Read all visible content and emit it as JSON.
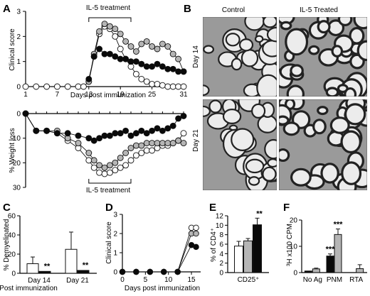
{
  "panels": {
    "A": "A",
    "B": "B",
    "C": "C",
    "D": "D",
    "E": "E",
    "F": "F"
  },
  "colors": {
    "white_fill": "#ffffff",
    "gray_fill": "#b5b5b5",
    "black_fill": "#0a0a0a",
    "axis": "#000000",
    "micrograph_bg": "#9a9a9a"
  },
  "chart_data": [
    {
      "id": "A_top",
      "type": "line",
      "ylabel": "Clinical score",
      "xlabel": "Days post immunization",
      "ylim": [
        0,
        3
      ],
      "yticks": [
        0,
        1,
        2,
        3
      ],
      "xlim": [
        1,
        31
      ],
      "xticks": [
        1,
        7,
        13,
        19,
        25,
        31
      ],
      "annotation": "IL-5 treatment",
      "annotation_range": [
        13,
        21
      ],
      "series": [
        {
          "style": "white",
          "x": [
            1,
            3,
            5,
            7,
            9,
            11,
            12,
            13,
            14,
            15,
            16,
            17,
            18,
            19,
            20,
            21,
            22,
            23,
            24,
            25,
            26,
            27,
            28,
            29,
            30,
            31
          ],
          "y": [
            0,
            0,
            0,
            0,
            0,
            0,
            0,
            0.2,
            1.2,
            2.1,
            2.4,
            2.3,
            2.0,
            1.5,
            1.1,
            0.8,
            0.5,
            0.3,
            0.2,
            0.1,
            0.1,
            0.05,
            0,
            0,
            0,
            0
          ]
        },
        {
          "style": "gray",
          "x": [
            13,
            14,
            15,
            16,
            17,
            18,
            19,
            20,
            21,
            22,
            23,
            24,
            25,
            26,
            27,
            28,
            29,
            30,
            31
          ],
          "y": [
            0.2,
            1.3,
            2.2,
            2.5,
            2.4,
            2.3,
            2.1,
            1.8,
            1.6,
            1.4,
            1.7,
            1.8,
            1.6,
            1.5,
            1.7,
            1.6,
            1.3,
            1.1,
            0.6
          ]
        },
        {
          "style": "black",
          "x": [
            13,
            14,
            15,
            16,
            17,
            18,
            19,
            20,
            21,
            22,
            23,
            24,
            25,
            26,
            27,
            28,
            29,
            30,
            31
          ],
          "y": [
            0.3,
            1.2,
            1.5,
            1.3,
            1.3,
            1.2,
            1.1,
            1.1,
            1.0,
            1.0,
            0.9,
            0.8,
            0.8,
            0.9,
            0.8,
            0.7,
            0.7,
            0.6,
            0.6
          ]
        }
      ]
    },
    {
      "id": "A_bottom",
      "type": "line",
      "ylabel": "% Weight loss",
      "ylim": [
        0,
        30
      ],
      "yticks": [
        0,
        10,
        20,
        30
      ],
      "y_inverted": true,
      "annotation": "IL-5 treatment",
      "annotation_range": [
        13,
        21
      ],
      "series": [
        {
          "style": "white",
          "x": [
            1,
            3,
            5,
            7,
            9,
            11,
            13,
            14,
            15,
            16,
            17,
            18,
            19,
            20,
            21,
            22,
            23,
            24,
            25,
            26,
            27,
            28,
            29,
            30,
            31
          ],
          "y": [
            0,
            7,
            7,
            8,
            11,
            14,
            19,
            22,
            24,
            24.5,
            24,
            23,
            22,
            21,
            19,
            17,
            16,
            15,
            15,
            14,
            13,
            13,
            12,
            11,
            8
          ]
        },
        {
          "style": "gray",
          "x": [
            1,
            3,
            5,
            7,
            9,
            11,
            13,
            14,
            15,
            16,
            17,
            18,
            19,
            20,
            21,
            22,
            23,
            24,
            25,
            26,
            27,
            28,
            29,
            30,
            31
          ],
          "y": [
            0,
            7,
            7,
            7,
            10,
            12,
            16,
            19,
            21,
            22,
            21,
            20,
            18,
            16,
            14,
            13,
            13,
            12,
            12,
            12,
            12,
            12,
            12,
            11,
            12
          ]
        },
        {
          "style": "black",
          "x": [
            1,
            3,
            5,
            7,
            9,
            11,
            13,
            14,
            15,
            16,
            17,
            18,
            19,
            20,
            21,
            22,
            23,
            24,
            25,
            26,
            27,
            28,
            29,
            30,
            31
          ],
          "y": [
            0,
            7,
            7,
            8,
            8,
            9,
            10,
            11,
            10,
            9,
            9,
            8,
            8,
            7,
            9,
            8,
            7,
            8,
            7,
            6,
            7,
            6,
            5,
            2,
            1
          ]
        }
      ]
    },
    {
      "id": "C",
      "type": "bar",
      "ylabel": "% Demyelinated",
      "xlabel": "Post immunization",
      "ylim": [
        0,
        60
      ],
      "yticks": [
        0,
        20,
        40,
        60
      ],
      "categories": [
        "Day 14",
        "Day 21"
      ],
      "series": [
        {
          "style": "white",
          "values": [
            10,
            25
          ],
          "errors": [
            7,
            18
          ]
        },
        {
          "style": "black",
          "values": [
            2,
            3
          ],
          "errors": [
            0,
            0
          ]
        }
      ],
      "significance": [
        "**",
        "**"
      ]
    },
    {
      "id": "D",
      "type": "line",
      "ylabel": "Clinical score",
      "xlabel": "Days post immunization",
      "ylim": [
        0,
        3
      ],
      "yticks": [
        0,
        1,
        2,
        3
      ],
      "xlim": [
        0,
        17
      ],
      "xticks": [
        0,
        5,
        10,
        15
      ],
      "series": [
        {
          "style": "white",
          "x": [
            0,
            3,
            6,
            9,
            12,
            15,
            16
          ],
          "y": [
            0,
            0,
            0,
            0,
            0,
            2.3,
            2.3
          ]
        },
        {
          "style": "gray",
          "x": [
            0,
            3,
            6,
            9,
            12,
            15,
            16
          ],
          "y": [
            0,
            0,
            0,
            0,
            0,
            2.0,
            2.0
          ]
        },
        {
          "style": "black",
          "x": [
            0,
            3,
            6,
            9,
            12,
            15,
            16
          ],
          "y": [
            0,
            0,
            0,
            0,
            0,
            1.4,
            1.3
          ]
        }
      ]
    },
    {
      "id": "E",
      "type": "bar",
      "ylabel": "% of CD4⁺",
      "ylim": [
        0,
        12
      ],
      "yticks": [
        0,
        2,
        4,
        6,
        8,
        10,
        12
      ],
      "categories": [
        "CD25⁺"
      ],
      "series": [
        {
          "style": "white",
          "values": [
            5.6
          ],
          "errors": [
            1.0
          ]
        },
        {
          "style": "gray",
          "values": [
            6.7
          ],
          "errors": [
            0.5
          ]
        },
        {
          "style": "black",
          "values": [
            10.1
          ],
          "errors": [
            1.4
          ]
        }
      ],
      "significance": [
        "**"
      ]
    },
    {
      "id": "F",
      "type": "bar",
      "ylabel": "³H x100 CPM",
      "ylim": [
        0,
        20
      ],
      "yticks": [
        0,
        10,
        20
      ],
      "categories": [
        "No Ag",
        "PNM",
        "RTA"
      ],
      "series": [
        {
          "style": "black",
          "values": [
            0.6,
            6.3,
            0
          ],
          "errors": [
            0,
            0.8,
            0
          ]
        },
        {
          "style": "gray",
          "values": [
            1.4,
            14.5,
            1.5
          ],
          "errors": [
            0.3,
            2.1,
            1.5
          ]
        }
      ],
      "significance_labels": [
        "***",
        "***"
      ]
    }
  ],
  "micrographs": {
    "col_control": "Control",
    "col_il5": "IL-5 Treated",
    "row_day14": "Day 14",
    "row_day21": "Day 21"
  }
}
